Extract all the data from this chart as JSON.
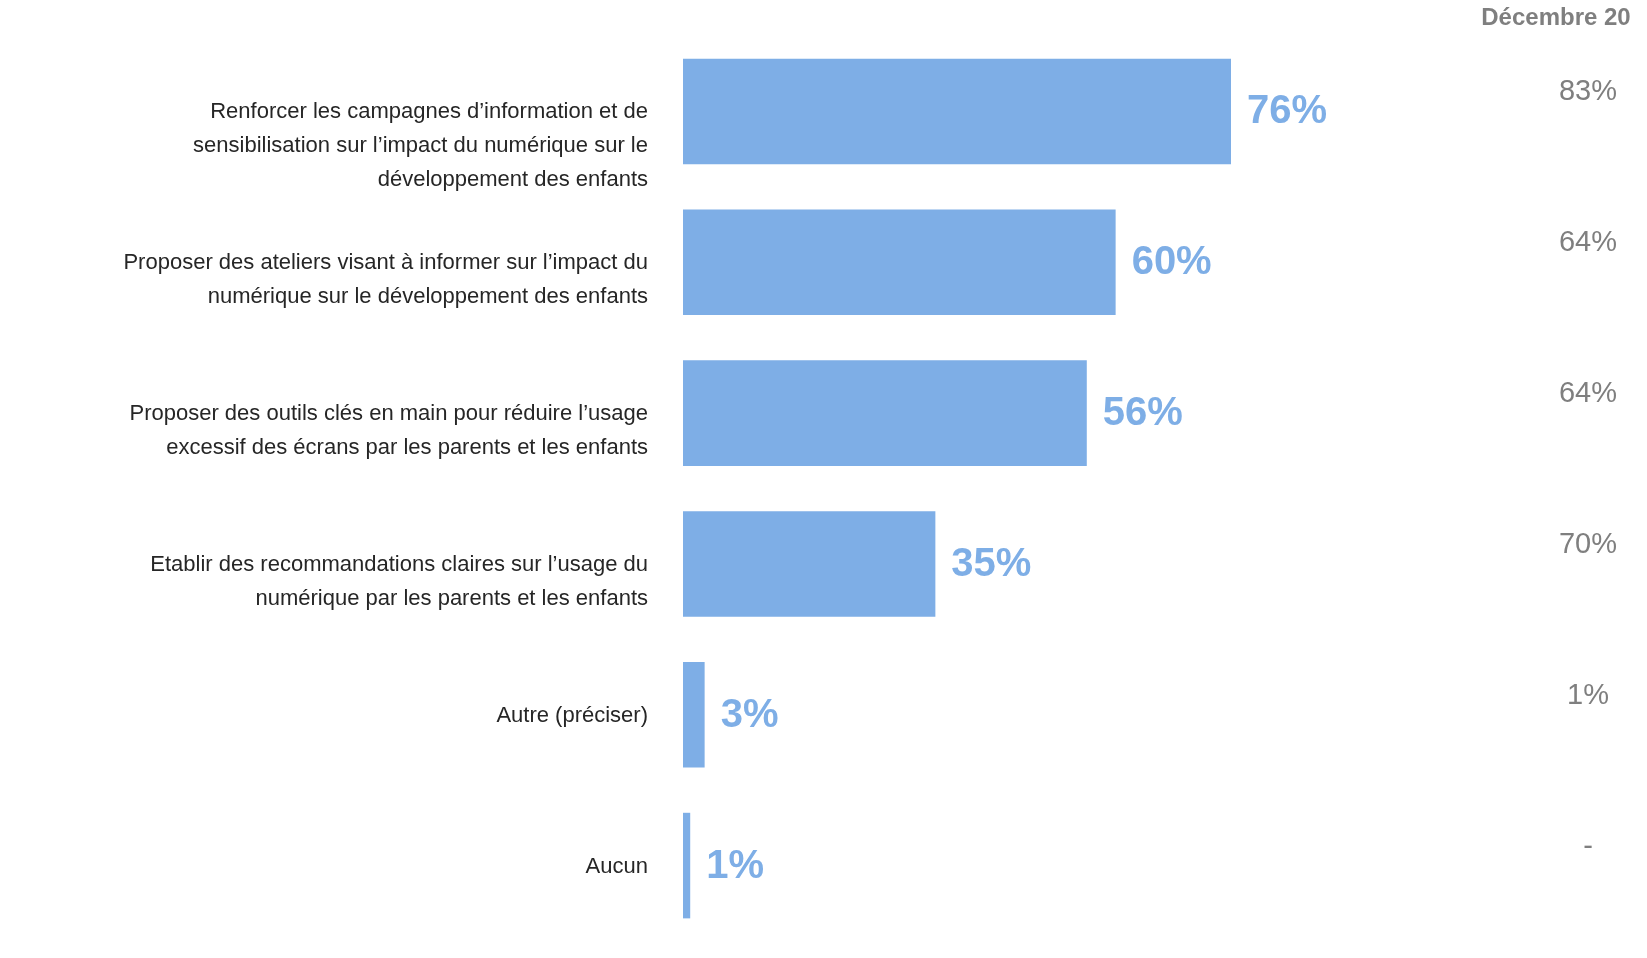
{
  "chart_data": {
    "type": "bar",
    "orientation": "horizontal",
    "value_labels": [
      "76%",
      "60%",
      "56%",
      "35%",
      "3%",
      "1%"
    ],
    "categories": [
      "Renforcer les campagnes d’information et de sensibilisation sur l’impact du numérique sur le développement des enfants",
      "Proposer des ateliers visant à informer sur l’impact du numérique sur le développement des enfants",
      "Proposer des outils clés en main pour réduire l’usage excessif des écrans par les parents et les enfants",
      "Etablir des recommandations claires sur l’usage du numérique par les parents et les enfants",
      "Autre (préciser)",
      "Aucun"
    ],
    "values": [
      76,
      60,
      56,
      35,
      3,
      1
    ],
    "color": "#7eaee6",
    "annotations": [
      "Décembre 20",
      "83%",
      "64%",
      "64%",
      "70%",
      "1%",
      "-"
    ]
  }
}
